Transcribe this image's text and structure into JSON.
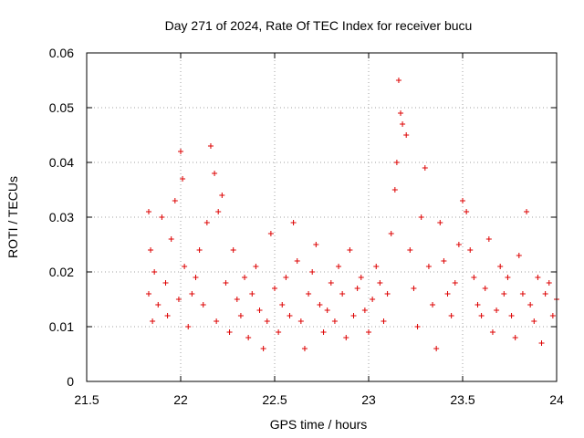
{
  "chart_data": {
    "type": "scatter",
    "title": "Day 271 of 2024, Rate Of TEC Index for receiver bucu",
    "xlabel": "GPS time / hours",
    "ylabel": "ROTI / TECUs",
    "xlim": [
      21.5,
      24
    ],
    "ylim": [
      0,
      0.06
    ],
    "x_ticks": [
      "21.5",
      "22",
      "22.5",
      "23",
      "23.5",
      "24"
    ],
    "y_ticks": [
      "0",
      "0.01",
      "0.02",
      "0.03",
      "0.04",
      "0.05",
      "0.06"
    ],
    "grid": true,
    "marker": "+",
    "series_color": "#dd0000",
    "series": [
      {
        "x": [
          21.83,
          21.83,
          21.84,
          21.85,
          21.86,
          21.88,
          21.9,
          21.92,
          21.93,
          21.95,
          21.97,
          21.99,
          22.0,
          22.01,
          22.02,
          22.04,
          22.06,
          22.08,
          22.1,
          22.12,
          22.14,
          22.16,
          22.18,
          22.19,
          22.2,
          22.22,
          22.24,
          22.26,
          22.28,
          22.3,
          22.32,
          22.34,
          22.36,
          22.38,
          22.4,
          22.42,
          22.44,
          22.46,
          22.48,
          22.5,
          22.52,
          22.54,
          22.56,
          22.58,
          22.6,
          22.62,
          22.64,
          22.66,
          22.68,
          22.7,
          22.72,
          22.74,
          22.76,
          22.78,
          22.8,
          22.82,
          22.84,
          22.86,
          22.88,
          22.9,
          22.92,
          22.94,
          22.96,
          22.98,
          23.0,
          23.02,
          23.04,
          23.06,
          23.08,
          23.1,
          23.12,
          23.14,
          23.15,
          23.16,
          23.17,
          23.18,
          23.2,
          23.22,
          23.24,
          23.26,
          23.28,
          23.3,
          23.32,
          23.34,
          23.36,
          23.38,
          23.4,
          23.42,
          23.44,
          23.46,
          23.48,
          23.5,
          23.52,
          23.54,
          23.56,
          23.58,
          23.6,
          23.62,
          23.64,
          23.66,
          23.68,
          23.7,
          23.72,
          23.74,
          23.76,
          23.78,
          23.8,
          23.82,
          23.84,
          23.86,
          23.88,
          23.9,
          23.92,
          23.94,
          23.96,
          23.98,
          24.0
        ],
        "y": [
          0.031,
          0.016,
          0.024,
          0.011,
          0.02,
          0.014,
          0.03,
          0.018,
          0.012,
          0.026,
          0.033,
          0.015,
          0.042,
          0.037,
          0.021,
          0.01,
          0.016,
          0.019,
          0.024,
          0.014,
          0.029,
          0.043,
          0.038,
          0.011,
          0.031,
          0.034,
          0.018,
          0.009,
          0.024,
          0.015,
          0.012,
          0.019,
          0.008,
          0.016,
          0.021,
          0.013,
          0.006,
          0.011,
          0.027,
          0.017,
          0.009,
          0.014,
          0.019,
          0.012,
          0.029,
          0.022,
          0.011,
          0.006,
          0.016,
          0.02,
          0.025,
          0.014,
          0.009,
          0.013,
          0.018,
          0.011,
          0.021,
          0.016,
          0.008,
          0.024,
          0.012,
          0.017,
          0.019,
          0.013,
          0.009,
          0.015,
          0.021,
          0.018,
          0.011,
          0.016,
          0.027,
          0.035,
          0.04,
          0.055,
          0.049,
          0.047,
          0.045,
          0.024,
          0.017,
          0.01,
          0.03,
          0.039,
          0.021,
          0.014,
          0.006,
          0.029,
          0.022,
          0.016,
          0.012,
          0.018,
          0.025,
          0.033,
          0.031,
          0.024,
          0.019,
          0.014,
          0.012,
          0.017,
          0.026,
          0.009,
          0.013,
          0.021,
          0.016,
          0.019,
          0.012,
          0.008,
          0.023,
          0.016,
          0.031,
          0.014,
          0.011,
          0.019,
          0.007,
          0.016,
          0.018,
          0.012,
          0.015
        ]
      }
    ]
  }
}
